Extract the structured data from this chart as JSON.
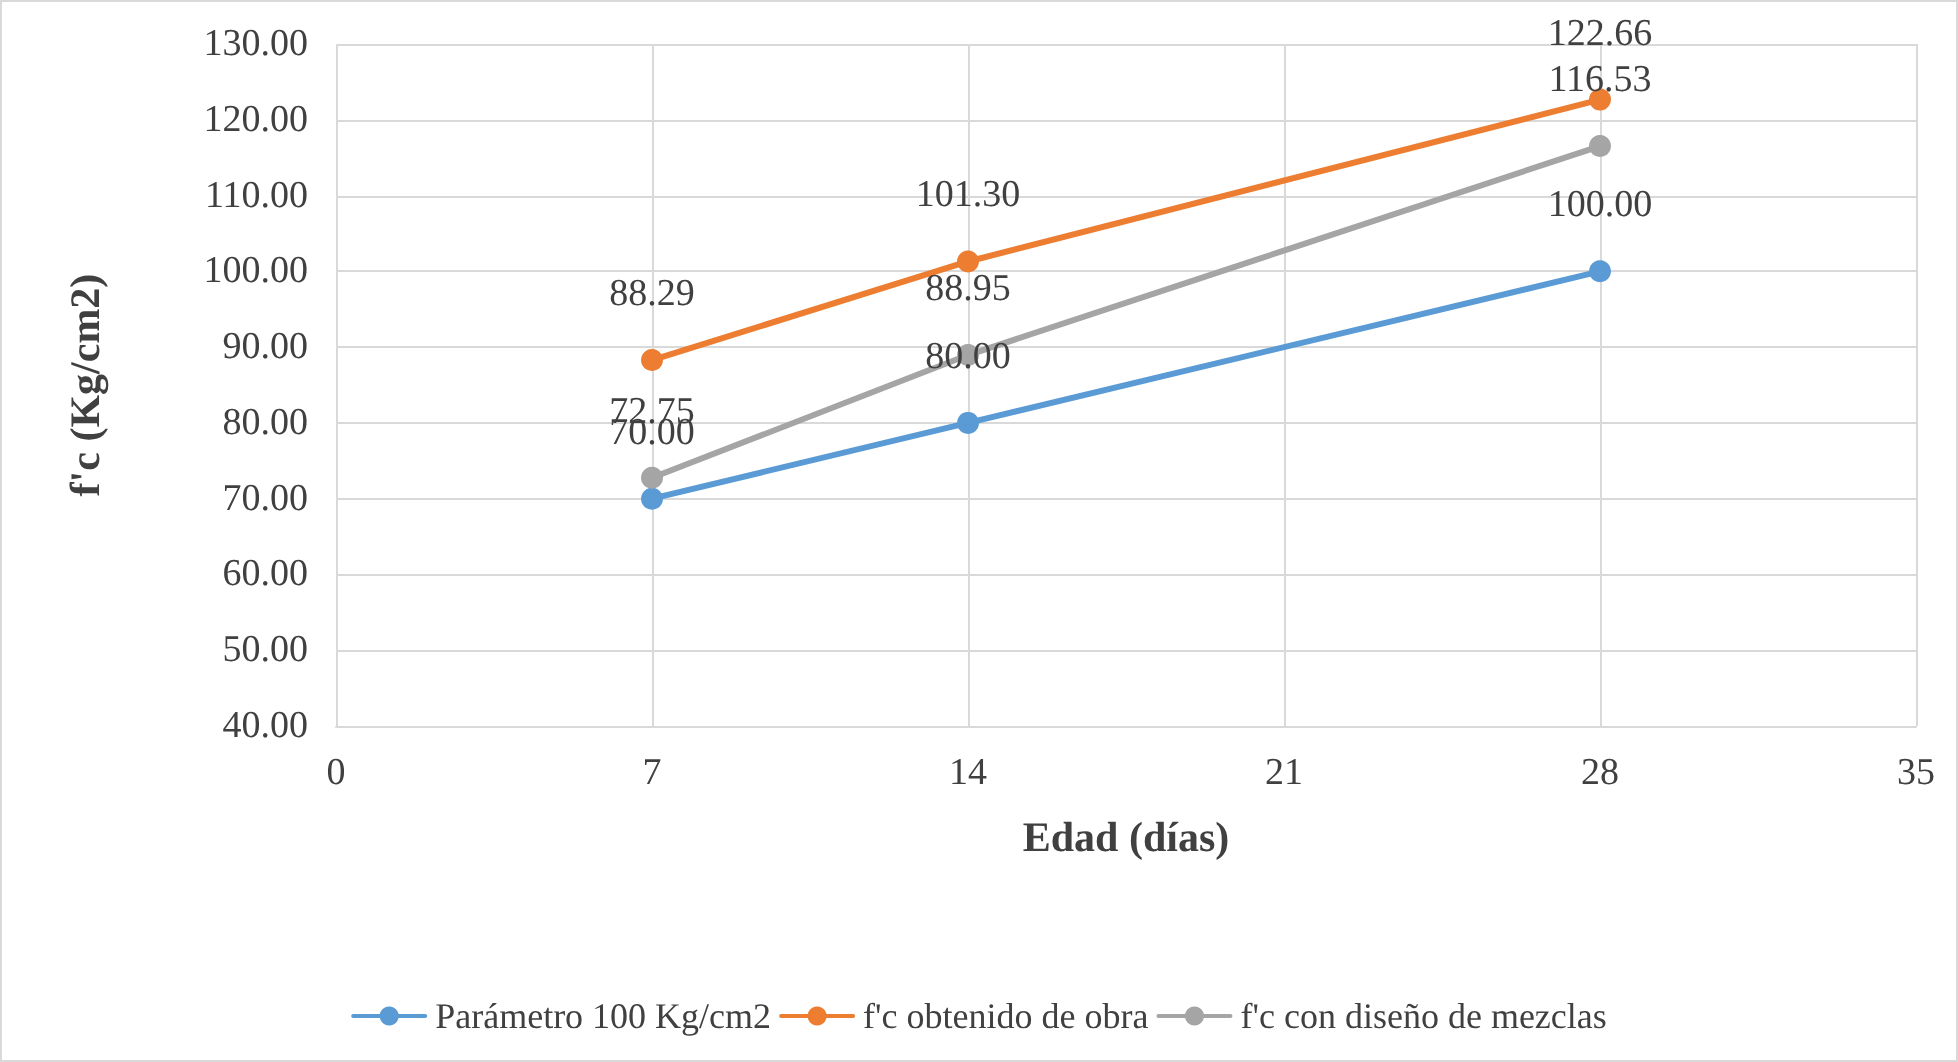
{
  "chart_data": {
    "type": "line",
    "xlabel": "Edad (días)",
    "ylabel": "f'c (Kg/cm2)",
    "x": [
      7,
      14,
      28
    ],
    "series": [
      {
        "name": "Parámetro 100 Kg/cm2",
        "color": "#5b9bd5",
        "values": [
          70,
          80,
          100
        ],
        "value_labels": [
          "70.00",
          "80.00",
          "100.00"
        ]
      },
      {
        "name": "f'c obtenido de obra",
        "color": "#ed7d31",
        "values": [
          88.29,
          101.3,
          122.66
        ],
        "value_labels": [
          "88.29",
          "101.30",
          "122.66"
        ]
      },
      {
        "name": "f'c con diseño de mezclas",
        "color": "#a5a5a5",
        "values": [
          72.75,
          88.95,
          116.53
        ],
        "value_labels": [
          "72.75",
          "88.95",
          "116.53"
        ]
      }
    ],
    "xlim": [
      0,
      35
    ],
    "xticks": [
      0,
      7,
      14,
      21,
      28,
      35
    ],
    "ylim": [
      40,
      130
    ],
    "yticks": [
      {
        "value": 40,
        "label": "40.00"
      },
      {
        "value": 50,
        "label": "50.00"
      },
      {
        "value": 60,
        "label": "60.00"
      },
      {
        "value": 70,
        "label": "70.00"
      },
      {
        "value": 80,
        "label": "80.00"
      },
      {
        "value": 90,
        "label": "90.00"
      },
      {
        "value": 100,
        "label": "100.00"
      },
      {
        "value": 110,
        "label": "110.00"
      },
      {
        "value": 120,
        "label": "120.00"
      },
      {
        "value": 130,
        "label": "130.00"
      }
    ],
    "grid": true,
    "legend": "bottom",
    "marker": "circle",
    "line_style": "solid"
  }
}
